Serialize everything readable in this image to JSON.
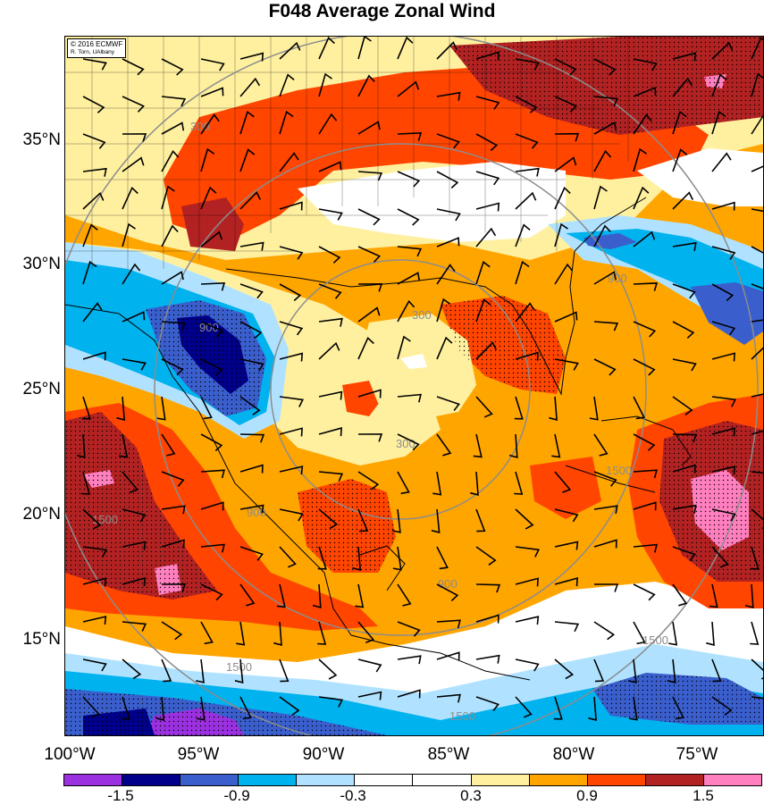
{
  "title": "F048 Average Zonal Wind",
  "credit": {
    "line1": "© 2016 ECMWF",
    "line2": "R. Torn, UAlbany"
  },
  "lat_labels": [
    "35°N",
    "30°N",
    "25°N",
    "20°N",
    "15°N"
  ],
  "lon_labels": [
    "100°W",
    "95°W",
    "90°W",
    "85°W",
    "80°W",
    "75°W"
  ],
  "colorbar": {
    "colors": [
      "#9b30e0",
      "#00008b",
      "#3a5fcd",
      "#00b2ee",
      "#b0e2ff",
      "#ffffff",
      "#ffffff",
      "#fff0a0",
      "#ffa500",
      "#ff4500",
      "#b22222",
      "#ff7fbf"
    ],
    "tick_labels": [
      "-1.5",
      "-0.9",
      "-0.3",
      "0.3",
      "0.9",
      "1.5"
    ]
  },
  "contour_labels": [
    "300",
    "300",
    "300",
    "900",
    "900",
    "900",
    "900",
    "1500",
    "1500",
    "1500",
    "1500",
    "1500"
  ],
  "colors": {
    "orange": "#ffa500",
    "yellow": "#fff0a0",
    "red": "#ff4500",
    "darkred": "#b22222",
    "pink": "#ff7fbf",
    "lightblue": "#b0e2ff",
    "cyan": "#00b2ee",
    "blue": "#3a5fcd",
    "navy": "#00008b",
    "purple": "#9b30e0",
    "range_ring": "#8c8c8c"
  }
}
